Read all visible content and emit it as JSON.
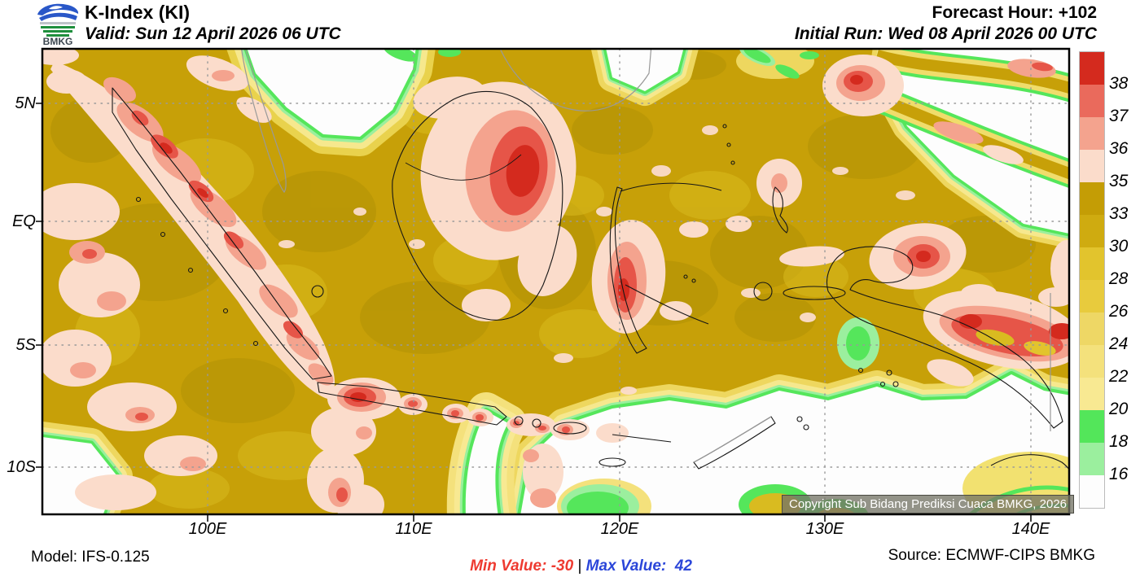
{
  "header": {
    "logo_text": "BMKG",
    "title": "K-Index (KI)",
    "valid_line": "Valid: Sun 12 April 2026 06 UTC",
    "forecast_hour": "Forecast Hour: +102",
    "initial_run": "Initial Run: Wed 08 April 2026 00 UTC"
  },
  "map": {
    "lat_labels": [
      "5N",
      "EQ",
      "5S",
      "10S"
    ],
    "lon_labels": [
      "100E",
      "110E",
      "120E",
      "130E",
      "140E"
    ],
    "copyright": "Copyright Sub Bidang Prediksi Cuaca BMKG, 2026"
  },
  "colorbar": {
    "tick_labels": [
      "38",
      "37",
      "36",
      "35",
      "33",
      "30",
      "28",
      "26",
      "24",
      "22",
      "20",
      "18",
      "16"
    ],
    "segment_colors_top_to_bottom": [
      "#d42a1e",
      "#ea6a5c",
      "#f4a38e",
      "#fbdccb",
      "#c49d05",
      "#cfab10",
      "#e2c42d",
      "#e8cb3d",
      "#eed765",
      "#f4e17c",
      "#f8e992",
      "#53e65a",
      "#9bef9e",
      "#fdfdfd"
    ]
  },
  "footer": {
    "model": "Model: IFS-0.125",
    "min_value": "Min Value: -30",
    "separator": " | ",
    "max_value": "Max Value:  42",
    "source": "Source: ECMWF-CIPS BMKG",
    "min_color": "#ee3a30",
    "max_color": "#2b46d9"
  }
}
